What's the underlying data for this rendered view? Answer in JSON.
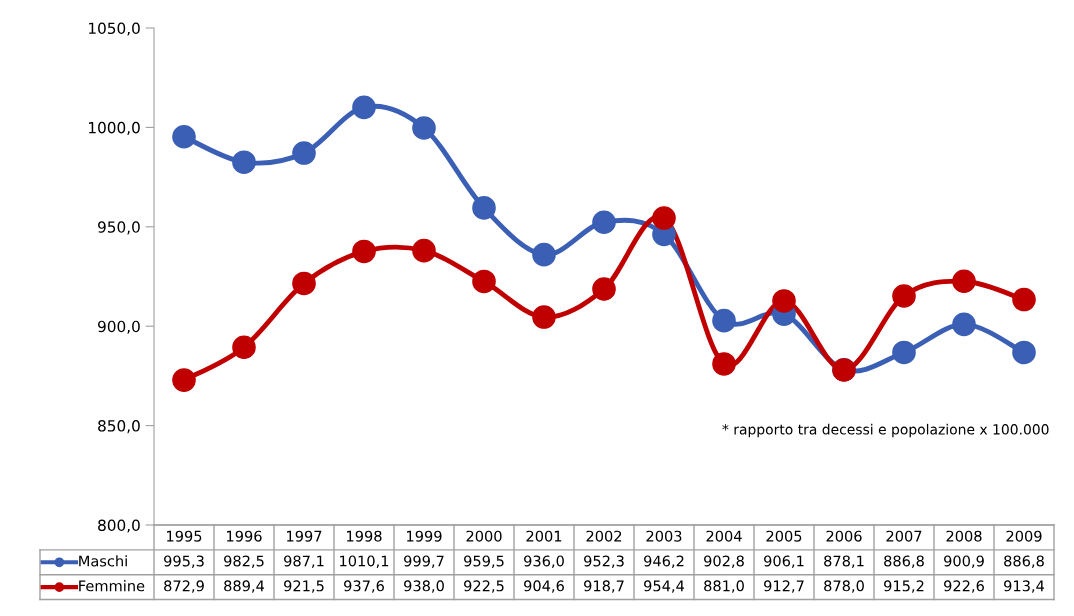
{
  "chart_data": {
    "type": "line",
    "categories": [
      "1995",
      "1996",
      "1997",
      "1998",
      "1999",
      "2000",
      "2001",
      "2002",
      "2003",
      "2004",
      "2005",
      "2006",
      "2007",
      "2008",
      "2009"
    ],
    "series": [
      {
        "name": "Maschi",
        "color": "#3a5fb5",
        "values": [
          995.3,
          982.5,
          987.1,
          1010.1,
          999.7,
          959.5,
          936.0,
          952.3,
          946.2,
          902.8,
          906.1,
          878.1,
          886.8,
          900.9,
          886.8
        ],
        "value_labels": [
          "995,3",
          "982,5",
          "987,1",
          "1010,1",
          "999,7",
          "959,5",
          "936,0",
          "952,3",
          "946,2",
          "902,8",
          "906,1",
          "878,1",
          "886,8",
          "900,9",
          "886,8"
        ]
      },
      {
        "name": "Femmine",
        "color": "#c00000",
        "values": [
          872.9,
          889.4,
          921.5,
          937.6,
          938.0,
          922.5,
          904.6,
          918.7,
          954.4,
          881.0,
          912.7,
          878.0,
          915.2,
          922.6,
          913.4
        ],
        "value_labels": [
          "872,9",
          "889,4",
          "921,5",
          "937,6",
          "938,0",
          "922,5",
          "904,6",
          "918,7",
          "954,4",
          "881,0",
          "912,7",
          "878,0",
          "915,2",
          "922,6",
          "913,4"
        ]
      }
    ],
    "ylim": [
      800,
      1050
    ],
    "yticks": [
      {
        "value": 800,
        "label": "800,0"
      },
      {
        "value": 850,
        "label": "850,0"
      },
      {
        "value": 900,
        "label": "900,0"
      },
      {
        "value": 950,
        "label": "950,0"
      },
      {
        "value": 1000,
        "label": "1000,0"
      },
      {
        "value": 1050,
        "label": "1050,0"
      }
    ],
    "marker": "circle",
    "line_style": "solid",
    "grid": false,
    "legend": "bottom left",
    "annotations": [
      "* rapporto tra decessi e popolazione x 100.000"
    ]
  }
}
